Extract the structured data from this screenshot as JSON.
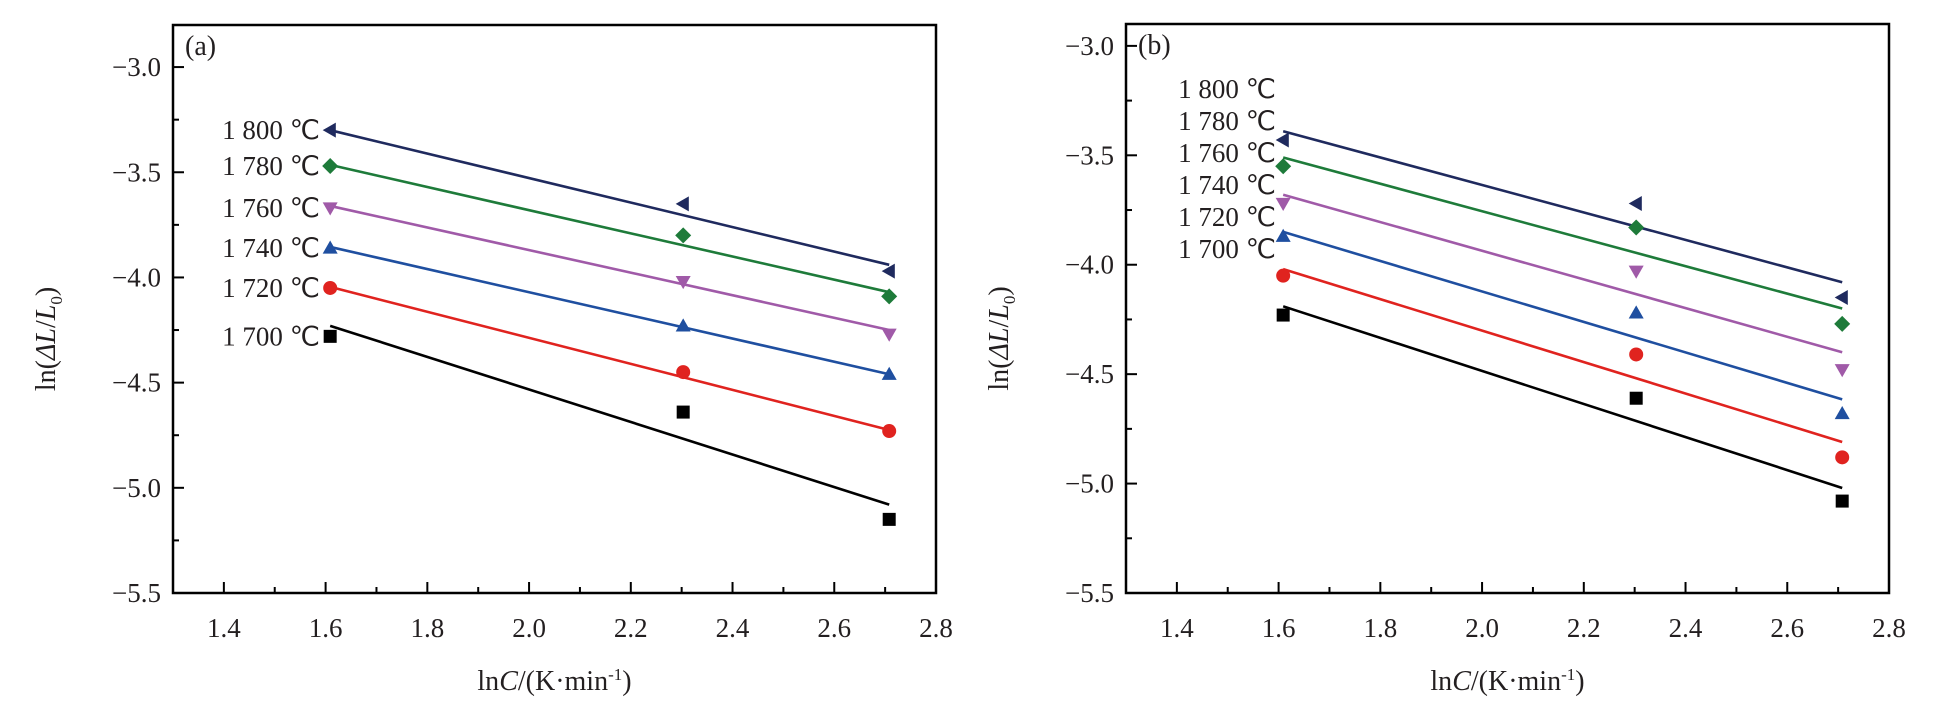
{
  "chart_data": [
    {
      "type": "scatter",
      "panel_label": "(a)",
      "xlabel_parts": [
        "ln",
        "C",
        "/(K·min",
        "-1",
        ")"
      ],
      "ylabel_parts": [
        "ln(",
        "ΔL",
        "/",
        "L",
        "0",
        ")"
      ],
      "xlim": [
        1.3,
        2.8
      ],
      "ylim": [
        -5.5,
        -2.8
      ],
      "xticks": [
        1.4,
        1.6,
        1.8,
        2.0,
        2.2,
        2.4,
        2.6,
        2.8
      ],
      "xtick_labels": [
        "1.4",
        "1.6",
        "1.8",
        "2.0",
        "2.2",
        "2.4",
        "2.6",
        "2.8"
      ],
      "yticks": [
        -3.0,
        -3.5,
        -4.0,
        -4.5,
        -5.0,
        -5.5
      ],
      "ytick_labels": [
        "−3.0",
        "−3.5",
        "−4.0",
        "−4.5",
        "−5.0",
        "−5.5"
      ],
      "grid": false,
      "legend": "left, inline labels",
      "series": [
        {
          "name": "1 800 ℃",
          "color": "#1f2a5e",
          "marker": "triangle-left",
          "x": [
            1.609,
            2.303,
            2.708
          ],
          "y": [
            -3.3,
            -3.65,
            -3.97
          ],
          "fit": [
            [
              1.609,
              -3.3
            ],
            [
              2.708,
              -3.94
            ]
          ]
        },
        {
          "name": "1 780 ℃",
          "color": "#1e7b3a",
          "marker": "diamond",
          "x": [
            1.609,
            2.303,
            2.708
          ],
          "y": [
            -3.47,
            -3.8,
            -4.09
          ],
          "fit": [
            [
              1.609,
              -3.465
            ],
            [
              2.708,
              -4.07
            ]
          ]
        },
        {
          "name": "1 760 ℃",
          "color": "#a05aa8",
          "marker": "triangle-down",
          "x": [
            1.609,
            2.303,
            2.708
          ],
          "y": [
            -3.67,
            -4.02,
            -4.27
          ],
          "fit": [
            [
              1.609,
              -3.66
            ],
            [
              2.708,
              -4.25
            ]
          ]
        },
        {
          "name": "1 740 ℃",
          "color": "#1f4fa0",
          "marker": "triangle-up",
          "x": [
            1.609,
            2.303,
            2.708
          ],
          "y": [
            -3.86,
            -4.23,
            -4.46
          ],
          "fit": [
            [
              1.609,
              -3.855
            ],
            [
              2.708,
              -4.46
            ]
          ]
        },
        {
          "name": "1 720 ℃",
          "color": "#e0231f",
          "marker": "circle",
          "x": [
            1.609,
            2.303,
            2.708
          ],
          "y": [
            -4.05,
            -4.45,
            -4.73
          ],
          "fit": [
            [
              1.609,
              -4.045
            ],
            [
              2.708,
              -4.725
            ]
          ]
        },
        {
          "name": "1 700 ℃",
          "color": "#000000",
          "marker": "square",
          "x": [
            1.609,
            2.303,
            2.708
          ],
          "y": [
            -4.28,
            -4.64,
            -5.15
          ],
          "fit": [
            [
              1.609,
              -4.23
            ],
            [
              2.708,
              -5.08
            ]
          ]
        }
      ]
    },
    {
      "type": "scatter",
      "panel_label": "(b)",
      "xlabel_parts": [
        "ln",
        "C",
        "/(K·min",
        "-1",
        ")"
      ],
      "ylabel_parts": [
        "ln(",
        "ΔL",
        "/",
        "L",
        "0",
        ")"
      ],
      "xlim": [
        1.3,
        2.8
      ],
      "ylim": [
        -5.5,
        -2.9
      ],
      "xticks": [
        1.4,
        1.6,
        1.8,
        2.0,
        2.2,
        2.4,
        2.6,
        2.8
      ],
      "xtick_labels": [
        "1.4",
        "1.6",
        "1.8",
        "2.0",
        "2.2",
        "2.4",
        "2.6",
        "2.8"
      ],
      "yticks": [
        -3.0,
        -3.5,
        -4.0,
        -4.5,
        -5.0,
        -5.5
      ],
      "ytick_labels": [
        "−3.0",
        "−3.5",
        "−4.0",
        "−4.5",
        "−5.0",
        "−5.5"
      ],
      "grid": false,
      "legend": "left, inline labels",
      "series": [
        {
          "name": "1 800 ℃",
          "color": "#1f2a5e",
          "marker": "triangle-left",
          "x": [
            1.609,
            2.303,
            2.708
          ],
          "y": [
            -3.43,
            -3.72,
            -4.15
          ],
          "fit": [
            [
              1.609,
              -3.39
            ],
            [
              2.708,
              -4.08
            ]
          ]
        },
        {
          "name": "1 780 ℃",
          "color": "#1e7b3a",
          "marker": "diamond",
          "x": [
            1.609,
            2.303,
            2.708
          ],
          "y": [
            -3.55,
            -3.83,
            -4.27
          ],
          "fit": [
            [
              1.609,
              -3.51
            ],
            [
              2.708,
              -4.2
            ]
          ]
        },
        {
          "name": "1 760 ℃",
          "color": "#a05aa8",
          "marker": "triangle-down",
          "x": [
            1.609,
            2.303,
            2.708
          ],
          "y": [
            -3.72,
            -4.03,
            -4.48
          ],
          "fit": [
            [
              1.609,
              -3.68
            ],
            [
              2.708,
              -4.4
            ]
          ]
        },
        {
          "name": "1 740 ℃",
          "color": "#1f4fa0",
          "marker": "triangle-up",
          "x": [
            1.609,
            2.303,
            2.708
          ],
          "y": [
            -3.87,
            -4.22,
            -4.68
          ],
          "fit": [
            [
              1.609,
              -3.85
            ],
            [
              2.708,
              -4.615
            ]
          ]
        },
        {
          "name": "1 720 ℃",
          "color": "#e0231f",
          "marker": "circle",
          "x": [
            1.609,
            2.303,
            2.708
          ],
          "y": [
            -4.05,
            -4.41,
            -4.88
          ],
          "fit": [
            [
              1.609,
              -4.02
            ],
            [
              2.708,
              -4.81
            ]
          ]
        },
        {
          "name": "1 700 ℃",
          "color": "#000000",
          "marker": "square",
          "x": [
            1.609,
            2.303,
            2.708
          ],
          "y": [
            -4.23,
            -4.61,
            -5.08
          ],
          "fit": [
            [
              1.609,
              -4.19
            ],
            [
              2.708,
              -5.02
            ]
          ]
        }
      ]
    }
  ]
}
